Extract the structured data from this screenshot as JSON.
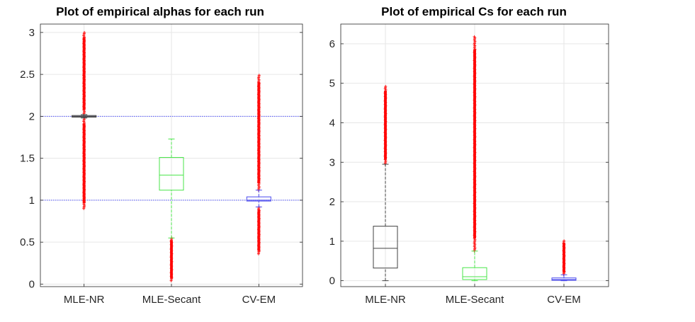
{
  "chart_data": [
    {
      "type": "boxplot",
      "title": "Plot of empirical alphas for each run",
      "xlabel": "",
      "ylabel": "",
      "categories": [
        "MLE-NR",
        "MLE-Secant",
        "CV-EM"
      ],
      "ylim": [
        -0.03,
        3.1
      ],
      "yticks": [
        0,
        0.5,
        1,
        1.5,
        2,
        2.5,
        3
      ],
      "ytick_labels": [
        "0",
        "0.5",
        "1",
        "1.5",
        "2",
        "2.5",
        "3"
      ],
      "grid": true,
      "reference_lines": [
        1,
        2
      ],
      "reference_line_color": "#4f52ff",
      "boxes": [
        {
          "name": "MLE-NR",
          "color": "#404040",
          "whisker_low": 1.98,
          "q1": 1.99,
          "median": 2.0,
          "q3": 2.01,
          "whisker_high": 2.02,
          "outlier_ranges": [
            [
              0.9,
              1.98
            ],
            [
              2.02,
              3.0
            ]
          ]
        },
        {
          "name": "MLE-Secant",
          "color": "#49e649",
          "whisker_low": 0.55,
          "q1": 1.12,
          "median": 1.3,
          "q3": 1.51,
          "whisker_high": 1.73,
          "outlier_ranges": [
            [
              0.04,
              0.55
            ]
          ]
        },
        {
          "name": "CV-EM",
          "color": "#4a4aee",
          "whisker_low": 0.92,
          "q1": 0.99,
          "median": 1.0,
          "q3": 1.04,
          "whisker_high": 1.12,
          "outlier_ranges": [
            [
              0.36,
              0.92
            ],
            [
              1.12,
              2.49
            ]
          ]
        }
      ]
    },
    {
      "type": "boxplot",
      "title": "Plot of empirical Cs for each run",
      "xlabel": "",
      "ylabel": "",
      "categories": [
        "MLE-NR",
        "MLE-Secant",
        "CV-EM"
      ],
      "ylim": [
        -0.15,
        6.5
      ],
      "yticks": [
        0,
        1,
        2,
        3,
        4,
        5,
        6
      ],
      "ytick_labels": [
        "0",
        "1",
        "2",
        "3",
        "4",
        "5",
        "6"
      ],
      "grid": true,
      "reference_lines": [],
      "reference_line_color": "#4f52ff",
      "boxes": [
        {
          "name": "MLE-NR",
          "color": "#404040",
          "whisker_low": 0.0,
          "q1": 0.32,
          "median": 0.82,
          "q3": 1.38,
          "whisker_high": 2.95,
          "outlier_ranges": [
            [
              2.95,
              4.92
            ]
          ]
        },
        {
          "name": "MLE-Secant",
          "color": "#49e649",
          "whisker_low": 0.0,
          "q1": 0.03,
          "median": 0.1,
          "q3": 0.33,
          "whisker_high": 0.75,
          "outlier_ranges": [
            [
              0.75,
              6.18
            ]
          ]
        },
        {
          "name": "CV-EM",
          "color": "#4a4aee",
          "whisker_low": 0.0,
          "q1": 0.01,
          "median": 0.03,
          "q3": 0.07,
          "whisker_high": 0.15,
          "outlier_ranges": [
            [
              0.15,
              1.01
            ]
          ]
        }
      ]
    }
  ]
}
